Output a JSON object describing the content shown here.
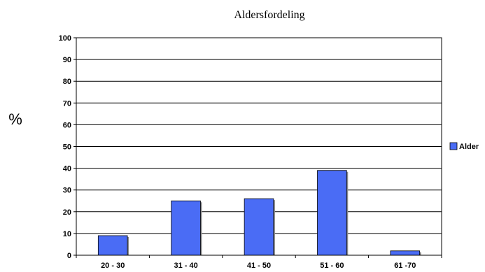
{
  "chart_data": {
    "type": "bar",
    "title": "Aldersfordeling",
    "ylabel": "%",
    "xlabel": "",
    "categories": [
      "20 - 30",
      "31 - 40",
      "41 - 50",
      "51 - 60",
      "61 -70"
    ],
    "series": [
      {
        "name": "Alder",
        "values": [
          9,
          25,
          26,
          39,
          2
        ],
        "color": "#4a6cf5"
      }
    ],
    "ylim": [
      0,
      100
    ],
    "yticks": [
      0,
      10,
      20,
      30,
      40,
      50,
      60,
      70,
      80,
      90,
      100
    ],
    "grid": true,
    "legend": "right"
  }
}
